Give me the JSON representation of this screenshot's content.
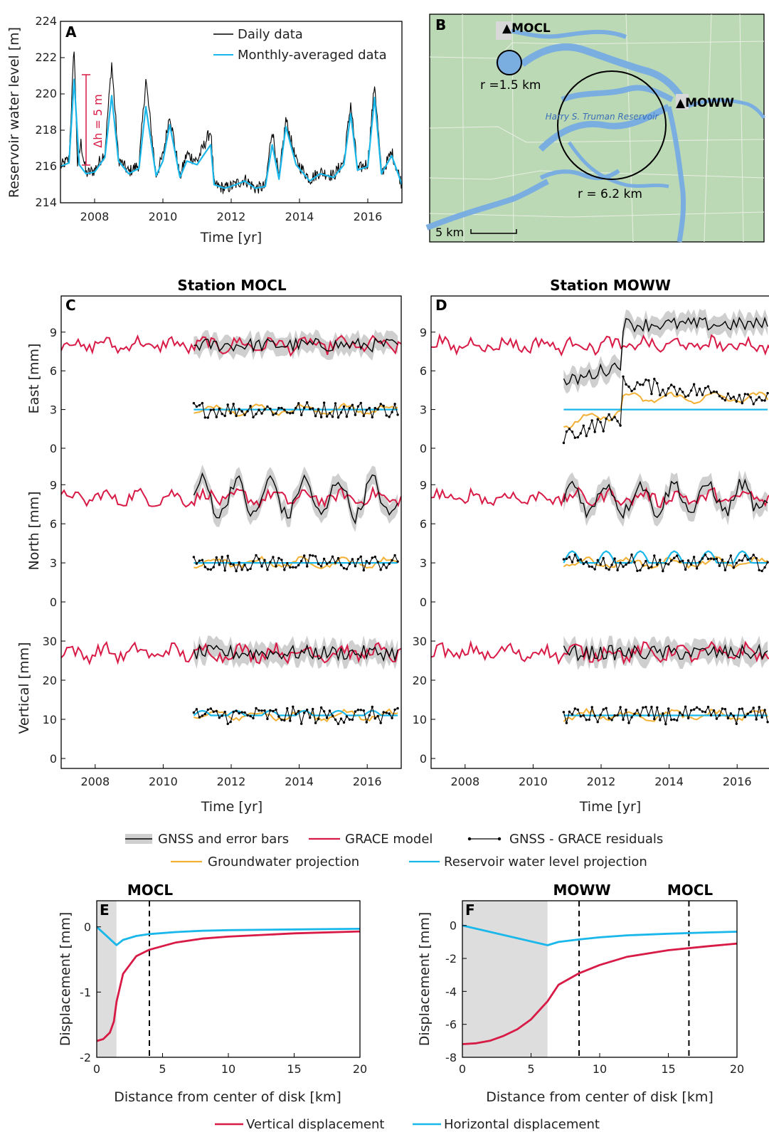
{
  "colors": {
    "daily": "#000000",
    "monthly": "#1ab7ea",
    "grace": "#d81b46",
    "residual": "#000000",
    "groundwater": "#f2b035",
    "reservoir": "#1ab7ea",
    "gnss_band": "#cfcfcf",
    "annotation": "#d81b46",
    "land": "#bcd9b5",
    "water": "#7aaee0",
    "disk_fill": "#dddddd"
  },
  "panelA": {
    "label": "A",
    "ylabel": "Reservoir water level [m]",
    "xlabel": "Time [yr]",
    "legend": [
      "Daily data",
      "Monthly-averaged data"
    ],
    "annotation": "Δh = 5 m",
    "yticks": [
      "224",
      "222",
      "220",
      "218",
      "216",
      "214"
    ],
    "xticks": [
      "2008",
      "2010",
      "2012",
      "2014",
      "2016"
    ]
  },
  "panelB": {
    "label": "B",
    "station1": "▲MOCL",
    "station2": "▲MOWW",
    "r1": "r =1.5 km",
    "r2": "r = 6.2 km",
    "reservoir": "Harry S. Truman Reservoir",
    "scale": "5 km"
  },
  "panelC": {
    "label": "C",
    "title": "Station MOCL"
  },
  "panelD": {
    "label": "D",
    "title": "Station MOWW"
  },
  "midAxes": {
    "east": "East [mm]",
    "north": "North [mm]",
    "vertical": "Vertical [mm]",
    "xlabel": "Time [yr]",
    "ticks_en": [
      "9",
      "6",
      "3",
      "0"
    ],
    "ticks_v": [
      "30",
      "20",
      "10",
      "0"
    ],
    "xticks": [
      "2008",
      "2010",
      "2012",
      "2014",
      "2016"
    ]
  },
  "legendMid": [
    "GNSS and error bars",
    "GRACE model",
    "GNSS - GRACE residuals",
    "Groundwater projection",
    "Reservoir water level projection"
  ],
  "panelE": {
    "label": "E",
    "station": "MOCL",
    "ylabel": "Displacement [mm]",
    "xlabel": "Distance from center of disk [km]",
    "yticks": [
      "0",
      "-1",
      "-2"
    ],
    "xticks": [
      "0",
      "5",
      "10",
      "15",
      "20"
    ]
  },
  "panelF": {
    "label": "F",
    "station1": "MOWW",
    "station2": "MOCL",
    "ylabel": "Displacement [mm]",
    "xlabel": "Distance from center of disk [km]",
    "yticks": [
      "0",
      "-2",
      "-4",
      "-6",
      "-8"
    ],
    "xticks": [
      "0",
      "5",
      "10",
      "15",
      "20"
    ]
  },
  "legendBottom": [
    "Vertical displacement",
    "Horizontal displacement"
  ],
  "chart_data": [
    {
      "type": "line",
      "id": "A",
      "title": "",
      "xlabel": "Time [yr]",
      "ylabel": "Reservoir water level [m]",
      "xlim": [
        2007,
        2017
      ],
      "ylim": [
        214,
        224
      ],
      "series": [
        {
          "name": "Daily data",
          "x": [
            2007.0,
            2007.25,
            2007.4,
            2007.5,
            2007.6,
            2007.75,
            2008.0,
            2008.3,
            2008.5,
            2008.7,
            2009.0,
            2009.3,
            2009.5,
            2009.8,
            2010.0,
            2010.2,
            2010.5,
            2010.7,
            2011.0,
            2011.4,
            2011.5,
            2011.8,
            2012.0,
            2012.4,
            2012.7,
            2013.0,
            2013.2,
            2013.4,
            2013.6,
            2013.9,
            2014.3,
            2014.6,
            2015.0,
            2015.3,
            2015.5,
            2015.7,
            2016.0,
            2016.2,
            2016.4,
            2016.7,
            2017.0
          ],
          "y": [
            216,
            216.4,
            222.6,
            216.1,
            217.3,
            215.6,
            215.8,
            216.8,
            221.7,
            216.4,
            215.7,
            216.1,
            220.8,
            215.5,
            216.6,
            218.9,
            215.4,
            216.7,
            216.3,
            218.0,
            215.0,
            214.8,
            214.9,
            215.3,
            214.8,
            214.9,
            218.1,
            215.3,
            218.6,
            216.3,
            215.3,
            215.7,
            215.5,
            216.3,
            219.5,
            215.8,
            216.2,
            220.6,
            215.6,
            216.8,
            215.0
          ]
        },
        {
          "name": "Monthly-averaged data",
          "x": [
            2007.0,
            2007.25,
            2007.4,
            2007.55,
            2007.75,
            2008.0,
            2008.3,
            2008.5,
            2008.7,
            2009.0,
            2009.3,
            2009.5,
            2009.8,
            2010.0,
            2010.2,
            2010.5,
            2010.7,
            2011.0,
            2011.4,
            2011.5,
            2011.8,
            2012.0,
            2012.4,
            2012.7,
            2013.0,
            2013.2,
            2013.4,
            2013.6,
            2013.9,
            2014.3,
            2014.6,
            2015.0,
            2015.3,
            2015.5,
            2015.7,
            2016.0,
            2016.2,
            2016.4,
            2016.7,
            2017.0
          ],
          "y": [
            216,
            216.2,
            220.8,
            216.1,
            215.6,
            215.7,
            216.5,
            219.9,
            216.3,
            215.6,
            215.9,
            219.3,
            215.5,
            216.3,
            218.3,
            215.4,
            216.3,
            216.1,
            217.2,
            215.0,
            214.8,
            214.9,
            215.2,
            214.8,
            214.9,
            217.2,
            215.3,
            218.2,
            216.1,
            215.2,
            215.6,
            215.4,
            216.1,
            218.9,
            215.8,
            216.0,
            219.8,
            215.6,
            216.6,
            215.0
          ]
        }
      ],
      "annotations": [
        "Δh = 5 m"
      ]
    },
    {
      "type": "line",
      "id": "C",
      "title": "Station MOCL",
      "xlabel": "Time [yr]",
      "xlim": [
        2007,
        2017
      ],
      "series": [
        {
          "name": "GRACE model"
        },
        {
          "name": "GNSS and error bars"
        },
        {
          "name": "GNSS - GRACE residuals"
        },
        {
          "name": "Groundwater projection"
        },
        {
          "name": "Reservoir water level projection"
        }
      ]
    },
    {
      "type": "line",
      "id": "D",
      "title": "Station MOWW",
      "xlabel": "Time [yr]",
      "xlim": [
        2007,
        2017
      ],
      "series": [
        {
          "name": "GRACE model"
        },
        {
          "name": "GNSS and error bars"
        },
        {
          "name": "GNSS - GRACE residuals"
        },
        {
          "name": "Groundwater projection"
        },
        {
          "name": "Reservoir water level projection"
        }
      ]
    },
    {
      "type": "line",
      "id": "E",
      "title": "MOCL",
      "xlabel": "Distance from center of disk [km]",
      "ylabel": "Displacement [mm]",
      "xlim": [
        0,
        20
      ],
      "ylim": [
        -2,
        0.4
      ],
      "disk_radius_km": 1.5,
      "station_distance_km": 4,
      "series": [
        {
          "name": "Vertical displacement",
          "x": [
            0,
            0.5,
            1.0,
            1.3,
            1.5,
            2,
            3,
            4,
            6,
            8,
            10,
            15,
            20
          ],
          "y": [
            -1.75,
            -1.72,
            -1.62,
            -1.45,
            -1.15,
            -0.72,
            -0.45,
            -0.35,
            -0.24,
            -0.18,
            -0.15,
            -0.1,
            -0.07
          ]
        },
        {
          "name": "Horizontal displacement",
          "x": [
            0,
            1.5,
            2,
            3,
            4,
            6,
            8,
            10,
            15,
            20
          ],
          "y": [
            0,
            -0.28,
            -0.2,
            -0.14,
            -0.11,
            -0.08,
            -0.06,
            -0.05,
            -0.04,
            -0.03
          ]
        }
      ]
    },
    {
      "type": "line",
      "id": "F",
      "title": "",
      "xlabel": "Distance from center of disk [km]",
      "ylabel": "Displacement [mm]",
      "xlim": [
        0,
        20
      ],
      "ylim": [
        -8,
        1.5
      ],
      "disk_radius_km": 6.2,
      "station_distances_km": {
        "MOWW": 8.5,
        "MOCL": 16.5
      },
      "series": [
        {
          "name": "Vertical displacement",
          "x": [
            0,
            1,
            2,
            3,
            4,
            5,
            6.2,
            7,
            8.5,
            10,
            12,
            15,
            18,
            20
          ],
          "y": [
            -7.2,
            -7.15,
            -7.0,
            -6.7,
            -6.3,
            -5.7,
            -4.6,
            -3.6,
            -2.9,
            -2.4,
            -1.9,
            -1.5,
            -1.25,
            -1.1
          ]
        },
        {
          "name": "Horizontal displacement",
          "x": [
            0,
            6.2,
            7,
            8.5,
            10,
            12,
            15,
            18,
            20
          ],
          "y": [
            0,
            -1.2,
            -1.0,
            -0.85,
            -0.72,
            -0.6,
            -0.5,
            -0.42,
            -0.38
          ]
        }
      ]
    }
  ]
}
